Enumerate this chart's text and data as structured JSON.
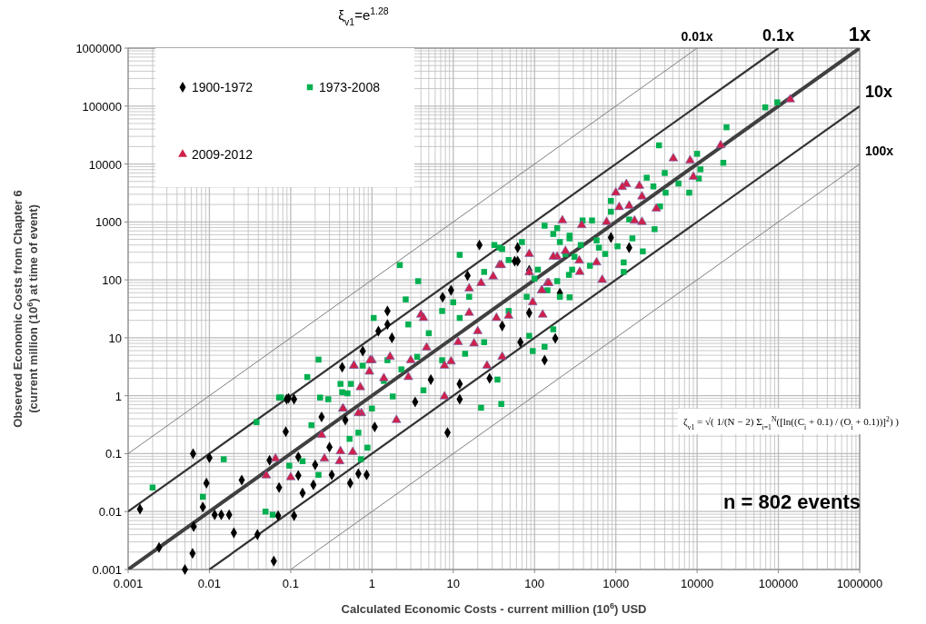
{
  "chart_data": {
    "type": "scatter",
    "xlabel": "Calculated Economic Costs  - current million (10$^{6}$) USD",
    "ylabel": "Observed Economic Costs from Chapter 6\n(current million (10$^{6}$) at time of event)",
    "log": "xy",
    "grid": true,
    "legend": "top left",
    "xlim": [
      0.001,
      1000000
    ],
    "ylim": [
      0.001,
      1000000
    ],
    "xticks": [
      0.001,
      0.01,
      0.1,
      1,
      10,
      100,
      1000,
      10000,
      100000,
      1000000
    ],
    "yticks": [
      0.001,
      0.01,
      0.1,
      1,
      10,
      100,
      1000,
      10000,
      100000,
      1000000
    ],
    "annotations": [
      "ξ$_{v1}$=e$^{1.28}$",
      "ζ$_{v1}$ = √( 1/(N − 2) Σ$_{i=1}$$^{N}$([ln((C$_{i}$ + 0.1) / (O$_{i}$ + 0.1))]$^{2}$) )",
      "n = 802 events"
    ],
    "series": [
      {
        "type": "line",
        "name": "0.01x",
        "color": "#7f7f7f",
        "x": [
          0.001,
          10000
        ],
        "values": [
          0.1,
          1000000
        ]
      },
      {
        "type": "line",
        "name": "0.1x",
        "color": "#333333",
        "x": [
          0.001,
          100000
        ],
        "values": [
          0.01,
          1000000
        ]
      },
      {
        "type": "line",
        "name": "1x",
        "color": "#404040",
        "x": [
          0.001,
          1000000
        ],
        "values": [
          0.001,
          1000000
        ]
      },
      {
        "type": "line",
        "name": "10x",
        "color": "#333333",
        "x": [
          0.01,
          1000000
        ],
        "values": [
          0.001,
          100000
        ]
      },
      {
        "type": "line",
        "name": "100x",
        "color": "#7f7f7f",
        "x": [
          0.1,
          1000000
        ],
        "values": [
          0.001,
          10000
        ]
      },
      {
        "name": "1900-1972",
        "color": "#000000",
        "marker": "diamond",
        "x": [
          0.0014,
          0.0063,
          0.01,
          0.0092,
          0.0083,
          0.0064,
          0.0062,
          0.005,
          0.0024,
          0.0116,
          0.014,
          0.0175,
          0.02,
          0.025,
          0.039,
          0.062,
          0.07,
          0.072,
          0.087,
          0.089,
          0.11,
          0.055,
          0.11,
          0.124,
          0.124,
          0.14,
          0.19,
          0.2,
          0.24,
          0.3,
          0.32,
          0.43,
          0.47,
          0.54,
          0.68,
          0.86,
          0.77,
          21,
          62,
          57,
          15,
          9.4,
          7.4,
          1.55,
          1.55,
          1.2,
          1.76,
          180,
          133,
          67,
          12,
          12,
          1.08,
          8.5,
          3.4,
          5.3,
          28,
          86,
          40,
          0.094,
          62,
          870,
          1460,
          86,
          205
        ],
        "values": [
          0.011,
          0.1,
          0.085,
          0.031,
          0.012,
          0.0055,
          0.0019,
          0.001,
          0.0024,
          0.0088,
          0.0088,
          0.0088,
          0.0043,
          0.035,
          0.004,
          0.0014,
          0.0085,
          0.026,
          0.24,
          0.87,
          0.87,
          0.077,
          0.0085,
          0.088,
          0.042,
          0.021,
          0.029,
          0.064,
          0.43,
          0.13,
          0.043,
          3.1,
          0.38,
          0.031,
          0.045,
          0.043,
          5.9,
          400,
          360,
          210,
          118,
          66,
          50,
          29,
          17,
          13,
          10,
          9.8,
          4.1,
          8.4,
          0.87,
          1.6,
          0.29,
          0.23,
          0.78,
          1.9,
          2,
          27,
          16,
          0.9,
          210,
          540,
          360,
          146,
          59
        ]
      },
      {
        "name": "1973-2008",
        "color": "#00b050",
        "marker": "square",
        "x": [
          12,
          2.2,
          3.7,
          2.6,
          1.05,
          0.22,
          0.16,
          0.23,
          0.43,
          0.076,
          22,
          35,
          39,
          95,
          133,
          170,
          270,
          190,
          70,
          40,
          24,
          7.3,
          12,
          5,
          3.6,
          2.3,
          1.4,
          0.55,
          1,
          7.3,
          14,
          24,
          48,
          80,
          205,
          265,
          310,
          15.7,
          10,
          2.8,
          1.55,
          0.77,
          4.3,
          1.8,
          86,
          110,
          0.002,
          0.0083,
          0.015,
          0.038,
          0.072,
          0.049,
          0.06,
          0.096,
          0.14,
          0.22,
          0.29,
          0.18,
          0.53,
          0.68,
          0.73,
          0.88,
          0.41,
          0.5,
          69000,
          97000,
          23000,
          3400,
          10000,
          21000,
          11000,
          10500,
          8000,
          5900,
          4000,
          2400,
          2900,
          4100,
          3500,
          3000,
          870,
          870,
          1460,
          1600,
          2150,
          1050,
          1250,
          1250,
          510,
          390,
          133,
          170,
          270,
          205,
          370,
          620,
          740,
          480,
          240,
          290,
          270,
          190,
          100,
          144,
          37,
          32,
          48,
          580
        ],
        "values": [
          270,
          180,
          95,
          46,
          22,
          4.2,
          2.1,
          0.93,
          1.15,
          0.93,
          0.62,
          1.9,
          0.72,
          5.9,
          7,
          14,
          520,
          780,
          450,
          340,
          137,
          29,
          22,
          12,
          4.7,
          2.85,
          1.8,
          1.6,
          0.6,
          4.1,
          5.3,
          8.4,
          29,
          51,
          51,
          122,
          250,
          51,
          41,
          17,
          4.1,
          3.3,
          1.24,
          0.97,
          10.8,
          150,
          0.026,
          0.018,
          0.08,
          0.35,
          0.93,
          0.01,
          0.0088,
          0.062,
          0.074,
          0.043,
          0.87,
          0.31,
          0.18,
          0.23,
          0.08,
          0.127,
          1.6,
          1.1,
          95000,
          116000,
          43000,
          21000,
          15000,
          10500,
          8100,
          5600,
          3200,
          4600,
          7000,
          5800,
          4100,
          3200,
          1850,
          750,
          2300,
          1500,
          1100,
          520,
          310,
          380,
          200,
          137,
          1060,
          1060,
          860,
          620,
          580,
          450,
          400,
          360,
          280,
          175,
          280,
          150,
          50,
          95,
          105,
          66,
          360,
          400,
          220,
          480
        ]
      },
      {
        "name": "2009-2012",
        "color": "#d0204a",
        "marker": "triangle",
        "x": [
          37,
          31,
          15.7,
          22,
          4,
          4.3,
          15.7,
          34,
          48,
          86,
          123,
          144,
          95,
          126,
          20,
          18,
          11.5,
          9.4,
          7.8,
          4.7,
          3,
          1.67,
          1,
          0.93,
          0.6,
          1.4,
          2.8,
          0.72,
          7.8,
          26,
          40,
          0.44,
          2,
          0.74,
          355,
          190,
          0.065,
          0.05,
          0.1,
          0.24,
          0.26,
          0.4,
          0.41,
          0.58,
          0.44,
          0.68,
          0.6,
          0.95,
          140000,
          19500,
          5100,
          8200,
          9000,
          1350,
          1200,
          1000,
          1950,
          2100,
          1460,
          1100,
          1700,
          2100,
          3150,
          770,
          220,
          380,
          580,
          360,
          680,
          86,
          240,
          170,
          39,
          150,
          123
        ],
        "values": [
          180,
          114,
          71,
          88,
          25,
          22,
          27,
          22,
          24,
          135,
          66,
          88,
          41,
          25,
          13,
          8,
          8.4,
          3.9,
          3.3,
          6.8,
          4.1,
          4.7,
          4.1,
          2.6,
          3.3,
          2,
          2.1,
          1.4,
          0.97,
          3.3,
          4.7,
          0.6,
          0.38,
          0.5,
          215,
          250,
          0.082,
          0.042,
          0.039,
          0.21,
          0.082,
          0.074,
          0.11,
          0.107,
          0.6,
          0.5,
          3.3,
          4.1,
          130000,
          21000,
          12500,
          11500,
          6000,
          4500,
          4000,
          3200,
          4200,
          2750,
          1900,
          1800,
          1050,
          1000,
          1700,
          1000,
          1060,
          880,
          200,
          137,
          100,
          280,
          315,
          250,
          180,
          88,
          66
        ]
      }
    ]
  }
}
